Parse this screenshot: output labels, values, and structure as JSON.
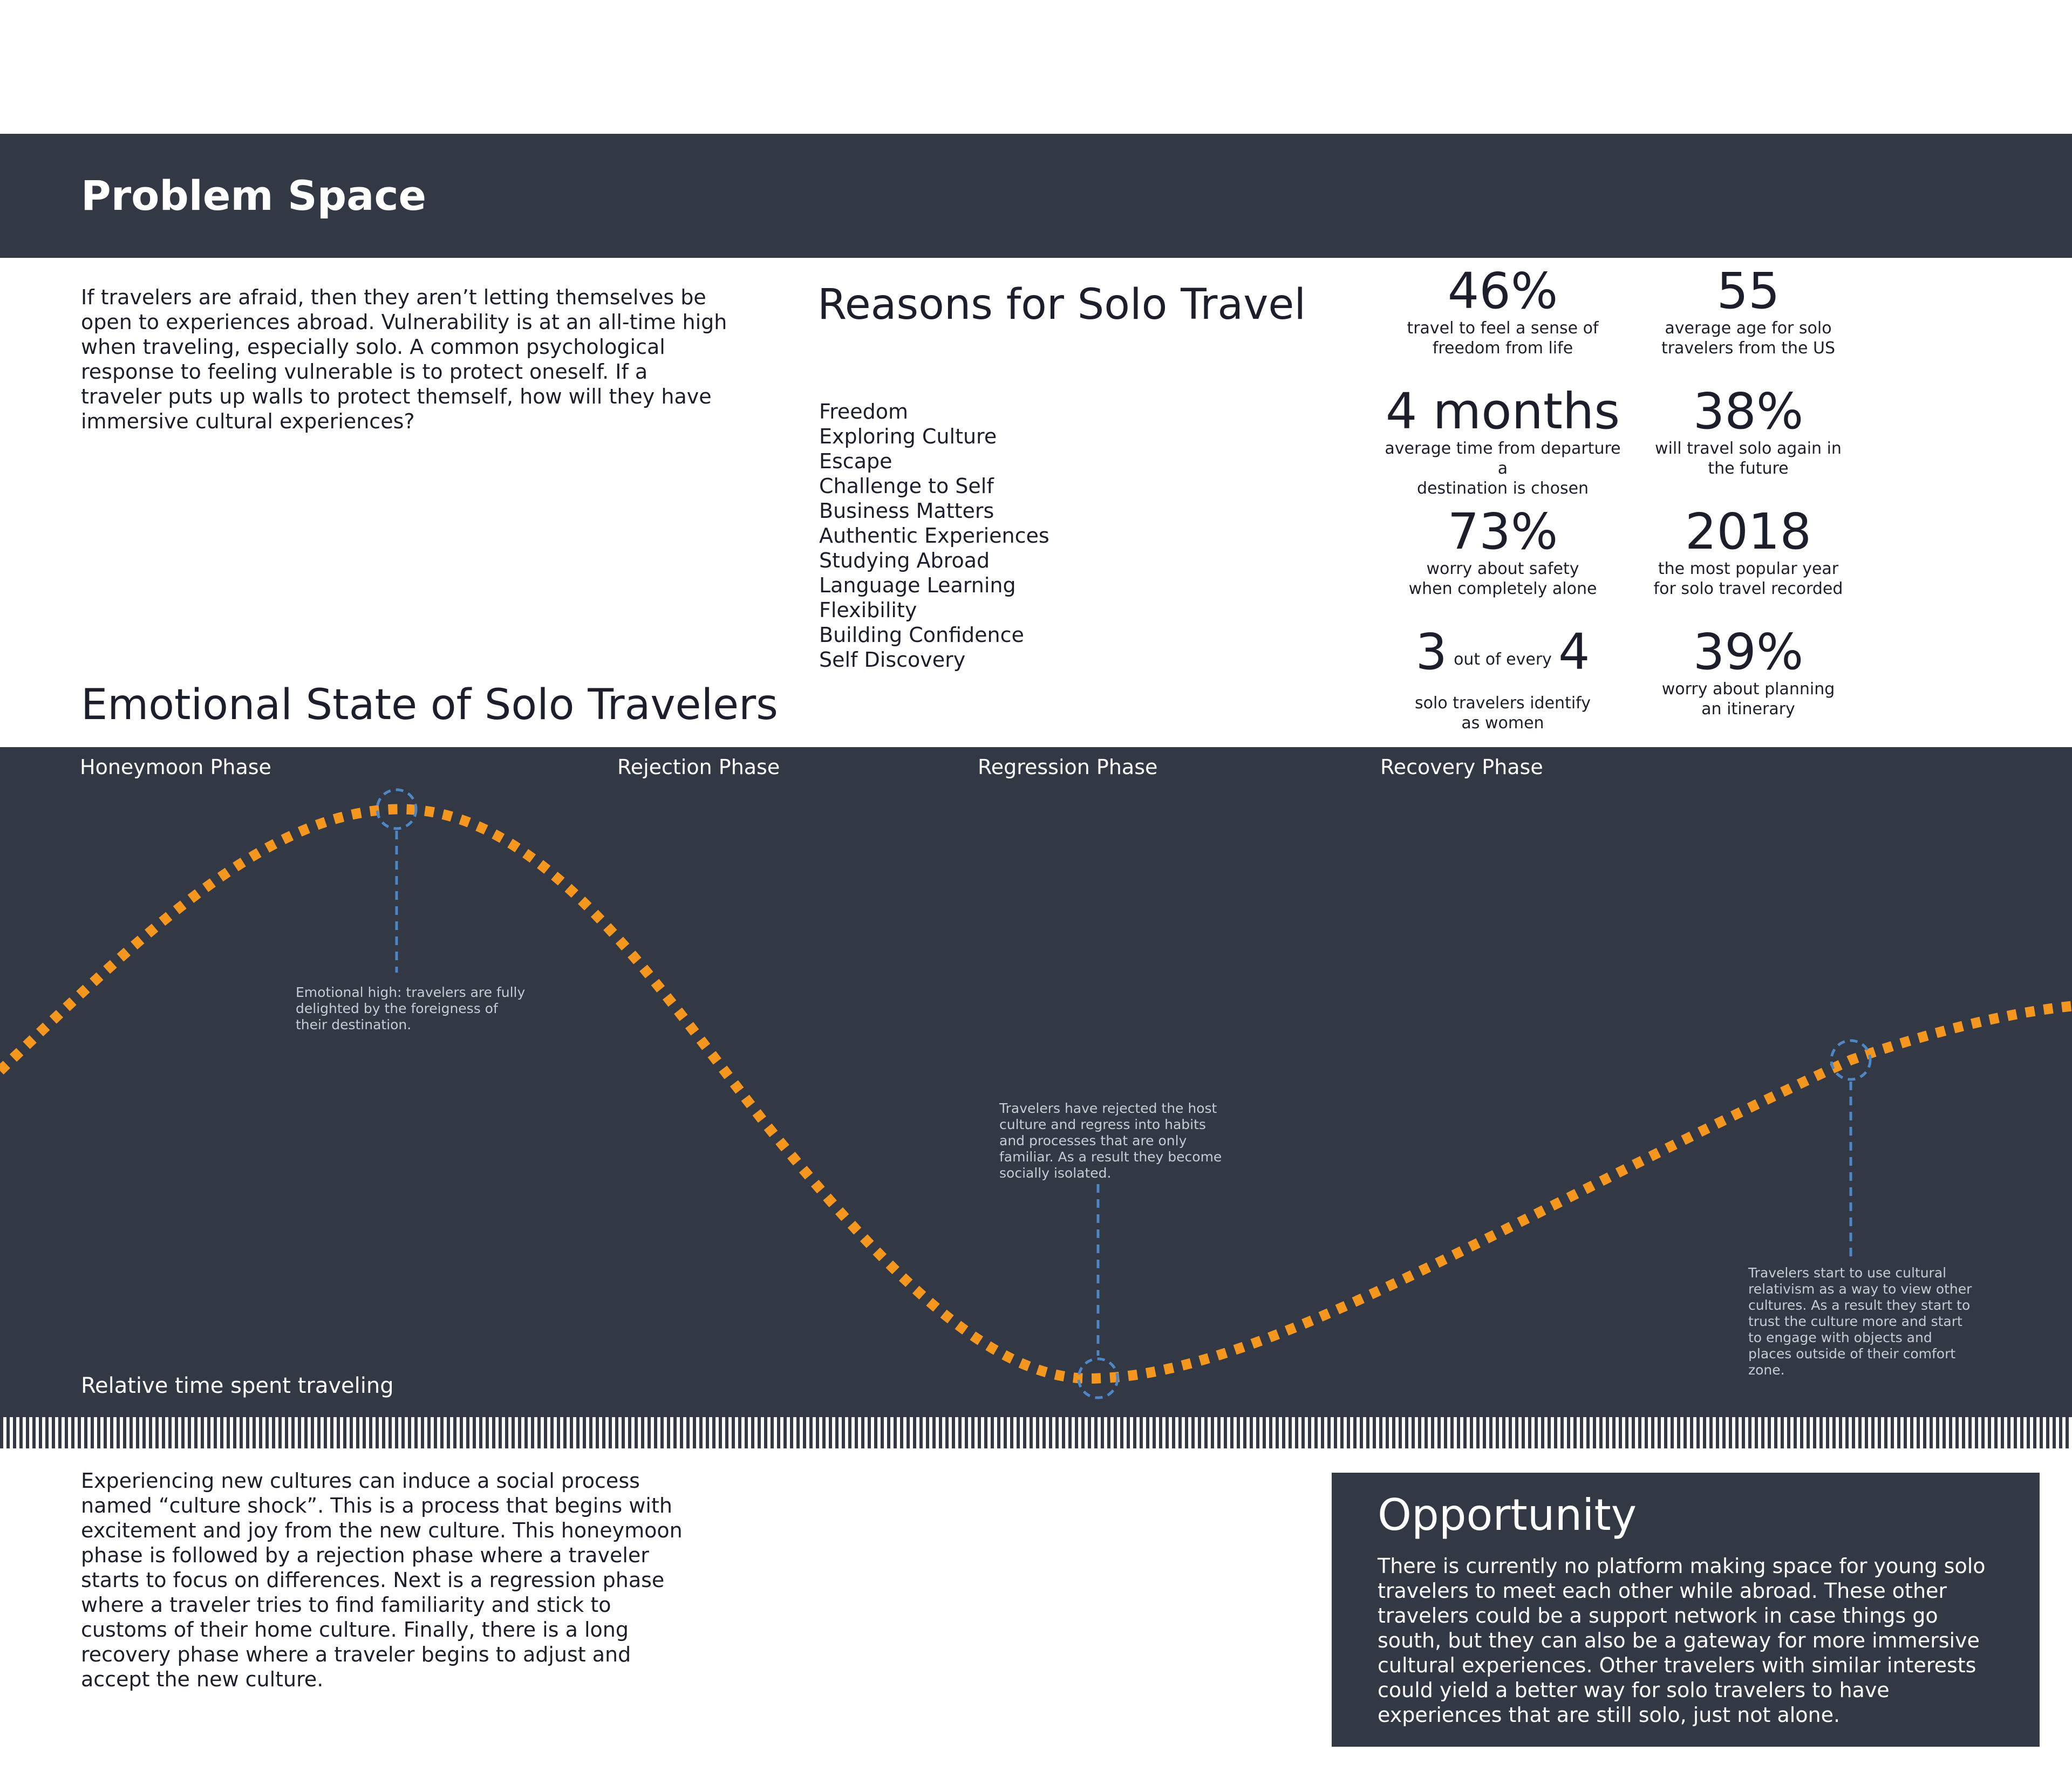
{
  "header": {
    "title": "Problem Space"
  },
  "intro": {
    "text": "If travelers are afraid, then they aren’t letting themselves be open to experiences abroad. Vulnerability is at an all-time high when traveling, especially solo. A common psychological response to feeling vulnerable is to protect oneself. If a traveler puts up walls to protect themself, how will they have immersive cultural experiences?"
  },
  "reasons": {
    "title": "Reasons for Solo Travel",
    "items": [
      "Freedom",
      "Exploring Culture",
      "Escape",
      "Challenge to Self",
      "Business Matters",
      "Authentic Experiences",
      "Studying Abroad",
      "Language Learning",
      "Flexibility",
      "Building Confidence",
      "Self Discovery"
    ]
  },
  "stats": [
    {
      "value": "46%",
      "label_1": "travel to feel a sense of",
      "label_2": "freedom from life"
    },
    {
      "value": "55",
      "label_1": "average age for solo",
      "label_2": "travelers from the US"
    },
    {
      "value": "4 months",
      "label_1": "average time from departure a",
      "label_2": "destination is chosen"
    },
    {
      "value": "38%",
      "label_1": "will travel solo again in",
      "label_2": "the future"
    },
    {
      "value": "73%",
      "label_1": "worry about safety",
      "label_2": "when completely alone"
    },
    {
      "value": "2018",
      "label_1": "the most popular year",
      "label_2": "for solo travel recorded"
    },
    {
      "num_a": "3",
      "mid": "out of every",
      "num_b": "4",
      "label_1": "solo travelers identify",
      "label_2": "as women"
    },
    {
      "value": "39%",
      "label_1": "worry about planning",
      "label_2": "an itinerary"
    }
  ],
  "diagram": {
    "title": "Emotional State of Solo Travelers",
    "phases": [
      "Honeymoon Phase",
      "Rejection Phase",
      "Regression Phase",
      "Recovery Phase"
    ],
    "axis_label": "Relative time spent traveling",
    "notes": [
      "Emotional high: travelers are fully delighted by the foreigness of their destination.",
      "Travelers have rejected the host culture and regress into habits and processes that are only familiar. As a result they become socially isolated.",
      "Travelers start to use cultural relativism as a way to view other cultures. As a result they start to trust the culture more and start to engage with objects and places outside of their comfort zone."
    ],
    "colors": {
      "curve": "#f5961e",
      "marker": "#4f86c6",
      "background": "#323844"
    }
  },
  "outro": {
    "text": "Experiencing new cultures can induce a social process named “culture shock”. This is a process that begins with excitement and joy from the new culture. This honeymoon phase is followed by a rejection phase where a traveler starts to focus on differences. Next is a regression phase where a traveler tries to find familiarity and stick to customs of their home culture. Finally, there is a long recovery phase where a traveler begins to adjust and accept the new culture."
  },
  "opportunity": {
    "title": "Opportunity",
    "text": "There is currently no platform making space for young solo travelers to meet each other while abroad. These other travelers could be a support network in case things go south, but they can also be a gateway for more immersive cultural experiences. Other travelers with similar interests could yield a better way for solo travelers to have experiences that are still solo, just not alone."
  }
}
